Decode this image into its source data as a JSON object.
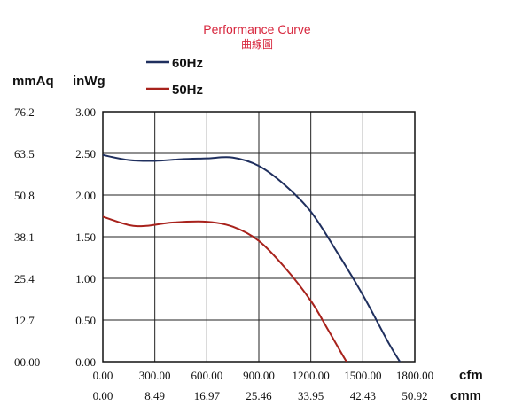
{
  "chart_data": {
    "type": "line",
    "title": "Performance Curve",
    "subtitle": "曲線圖",
    "x_unit_primary": "cfm",
    "x_unit_secondary": "cmm",
    "y_unit_primary": "inWg",
    "y_unit_secondary": "mmAq",
    "x_ticks_cfm": [
      "0.00",
      "300.00",
      "600.00",
      "900.00",
      "1200.00",
      "1500.00",
      "1800.00"
    ],
    "x_ticks_cmm": [
      "0.00",
      "8.49",
      "16.97",
      "25.46",
      "33.95",
      "42.43",
      "50.92"
    ],
    "y_ticks_inwg": [
      "0.00",
      "0.50",
      "1.00",
      "1.50",
      "2.00",
      "2.50",
      "3.00"
    ],
    "y_ticks_mmaq": [
      "00.00",
      "12.7",
      "25.4",
      "38.1",
      "50.8",
      "63.5",
      "76.2"
    ],
    "xlim": [
      0,
      1800
    ],
    "ylim": [
      0,
      3.0
    ],
    "grid": true,
    "legend_position": "top-left",
    "series": [
      {
        "name": "60Hz",
        "color": "#1f2f5e",
        "points": [
          [
            0,
            2.48
          ],
          [
            150,
            2.42
          ],
          [
            300,
            2.41
          ],
          [
            450,
            2.43
          ],
          [
            600,
            2.44
          ],
          [
            750,
            2.45
          ],
          [
            900,
            2.35
          ],
          [
            1050,
            2.12
          ],
          [
            1200,
            1.8
          ],
          [
            1350,
            1.32
          ],
          [
            1500,
            0.8
          ],
          [
            1650,
            0.22
          ],
          [
            1720,
            -0.02
          ]
        ]
      },
      {
        "name": "50Hz",
        "color": "#a8221c",
        "points": [
          [
            0,
            1.74
          ],
          [
            150,
            1.64
          ],
          [
            250,
            1.63
          ],
          [
            400,
            1.67
          ],
          [
            600,
            1.68
          ],
          [
            750,
            1.62
          ],
          [
            900,
            1.45
          ],
          [
            1050,
            1.13
          ],
          [
            1200,
            0.73
          ],
          [
            1300,
            0.38
          ],
          [
            1400,
            0.02
          ],
          [
            1420,
            -0.02
          ]
        ]
      }
    ]
  }
}
